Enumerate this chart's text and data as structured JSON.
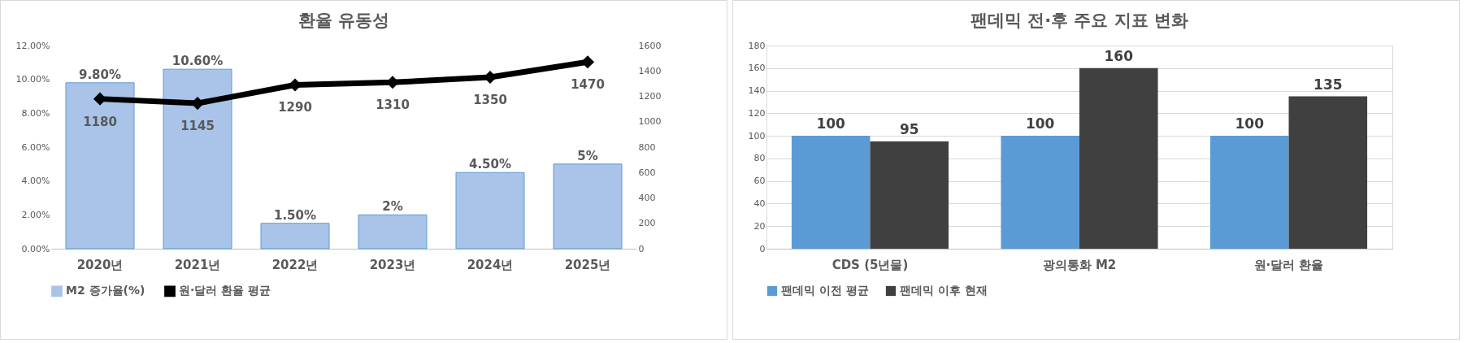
{
  "chart_data": [
    {
      "type": "bar",
      "title": "환율 유동성",
      "categories": [
        "2020년",
        "2021년",
        "2022년",
        "2023년",
        "2024년",
        "2025년"
      ],
      "series": [
        {
          "name": "M2 증가율(%)",
          "type": "bar",
          "color": "#a9c4e8",
          "values": [
            9.8,
            10.6,
            1.5,
            2,
            4.5,
            5
          ],
          "value_labels": [
            "9.80%",
            "10.60%",
            "1.50%",
            "2%",
            "4.50%",
            "5%"
          ]
        },
        {
          "name": "원·달러 환율 평균",
          "type": "line",
          "axis": "y2",
          "color": "#000000",
          "values": [
            1180,
            1145,
            1290,
            1310,
            1350,
            1470
          ],
          "value_labels": [
            "1180",
            "1145",
            "1290",
            "1310",
            "1350",
            "1470"
          ]
        }
      ],
      "ylim": [
        0,
        12
      ],
      "yticks": [
        {
          "value": 0,
          "label": "0.00%"
        },
        {
          "value": 2,
          "label": "2.00%"
        },
        {
          "value": 4,
          "label": "4.00%"
        },
        {
          "value": 6,
          "label": "6.00%"
        },
        {
          "value": 8,
          "label": "8.00%"
        },
        {
          "value": 10,
          "label": "10.00%"
        },
        {
          "value": 12,
          "label": "12.00%"
        }
      ],
      "y2lim": [
        0,
        1600
      ],
      "y2ticks": [
        0,
        200,
        400,
        600,
        800,
        1000,
        1200,
        1400,
        1600
      ],
      "marker": "diamond",
      "legend": "bottom"
    },
    {
      "type": "bar",
      "title": "팬데믹 전·후 주요 지표 변화",
      "categories": [
        "CDS (5년물)",
        "광의통화 M2",
        "원·달러 환율"
      ],
      "series": [
        {
          "name": "팬데믹 이전 평균",
          "color": "#5b9bd5",
          "values": [
            100,
            100,
            100
          ]
        },
        {
          "name": "팬데믹 이후 현재",
          "color": "#404040",
          "values": [
            95,
            160,
            135
          ]
        }
      ],
      "ylim": [
        0,
        180
      ],
      "yticks": [
        0,
        20,
        40,
        60,
        80,
        100,
        120,
        140,
        160,
        180
      ],
      "grid": "y",
      "data_labels": true,
      "legend": "bottom"
    }
  ]
}
